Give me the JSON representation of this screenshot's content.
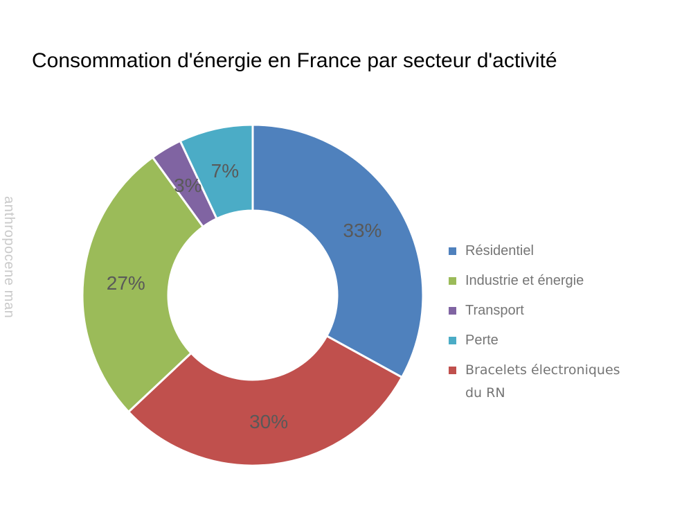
{
  "watermark": {
    "text": "anthropocene man",
    "color": "#c9c9c9"
  },
  "chart_data": {
    "type": "pie",
    "subtype": "donut",
    "title": "Consommation d'énergie en France par secteur d'activité",
    "title_color": "#000000",
    "unit": "%",
    "slice_label_color": "#595959",
    "slices_clockwise_from_top": [
      {
        "label": "Résidentiel",
        "value": 33,
        "display": "33%",
        "color": "#4f81bd"
      },
      {
        "label": "Bracelets électroniques du RN",
        "value": 30,
        "display": "30%",
        "color": "#c0504d"
      },
      {
        "label": "Industrie et énergie",
        "value": 27,
        "display": "27%",
        "color": "#9bbb59"
      },
      {
        "label": "Transport",
        "value": 3,
        "display": "3%",
        "color": "#8064a2"
      },
      {
        "label": "Perte",
        "value": 7,
        "display": "7%",
        "color": "#4bacc6"
      }
    ],
    "legend": {
      "position": "right",
      "text_color": "#757575",
      "items": [
        {
          "label": "Résidentiel",
          "lines": [
            "Résidentiel"
          ],
          "color": "#4f81bd"
        },
        {
          "label": "Industrie et énergie",
          "lines": [
            "Industrie et énergie"
          ],
          "color": "#9bbb59"
        },
        {
          "label": "Transport",
          "lines": [
            "Transport"
          ],
          "color": "#8064a2"
        },
        {
          "label": "Perte",
          "lines": [
            "Perte"
          ],
          "color": "#4bacc6"
        },
        {
          "label": "Bracelets électroniques du RN",
          "lines": [
            "Bracelets électroniques",
            "du RN"
          ],
          "color": "#c0504d"
        }
      ]
    }
  }
}
